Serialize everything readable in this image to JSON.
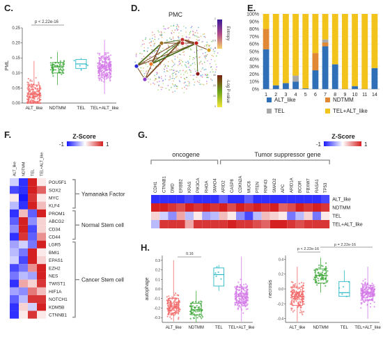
{
  "colors": {
    "alt": "#f26a6a",
    "ndtmm": "#3aa535",
    "tel": "#27b8c4",
    "telalt": "#d47be8",
    "bar_alt": "#2e6fb7",
    "bar_ndtmm": "#e08836",
    "bar_tel": "#a8a8a8",
    "bar_telalt": "#f2c31a",
    "heat_low": "#1a1aff",
    "heat_high": "#d42020"
  },
  "panels": {
    "c": {
      "label": "C.",
      "ylabel": "PML",
      "pvalue": "p < 2.22e-16",
      "categories": [
        "ALT_like",
        "NDTMM",
        "TEL",
        "TEL+ALT_like"
      ],
      "yticks": [
        "0.00",
        "0.05",
        "0.10",
        "0.15",
        "0.20",
        "0.25"
      ],
      "ylim": [
        0,
        0.25
      ]
    },
    "d": {
      "label": "D.",
      "title": "PMC",
      "entropy_label": "Entropy",
      "entropy_ticks": [
        "0",
        "0.5",
        "1",
        "1.5",
        "2"
      ],
      "pval_label": "-Log  P-value",
      "pval_ticks": [
        "0",
        "10",
        "20",
        "30"
      ]
    },
    "e": {
      "label": "E.",
      "yticks": [
        "0%",
        "10%",
        "20%",
        "30%",
        "40%",
        "50%",
        "60%",
        "70%",
        "80%",
        "90%",
        "100%"
      ],
      "legend": [
        "ALT_like",
        "NDTMM",
        "TEL",
        "TEL+ALT_like"
      ]
    },
    "f": {
      "label": "F.",
      "colorbar_title": "Z-Score",
      "cb_min": "-1",
      "cb_max": "1",
      "cols": [
        "ALT_like",
        "NDTMM",
        "TEL",
        "TEL+ALT_like"
      ],
      "genes": [
        "POU5F1",
        "SOX2",
        "MYC",
        "KLF4",
        "PROM1",
        "ABCG2",
        "CD34",
        "CD44",
        "LGR5",
        "BMI1",
        "EPAS1",
        "EZH2",
        "NES",
        "TWIST1",
        "HIF1A",
        "NOTCH1",
        "KDM5B",
        "CTNNB1"
      ],
      "groups": [
        "Yamanaka Factor",
        "Normal Stem cell",
        "Cancer Stem cell"
      ]
    },
    "g": {
      "label": "G.",
      "colorbar_title": "Z-Score",
      "cb_min": "-1",
      "cb_max": "1",
      "oncogene": "oncogene",
      "tsg": "Tumor suppressor gene",
      "genes": [
        "CDH1",
        "CTNNB1",
        "DMD",
        "ERBB2",
        "KRAS",
        "PIK3CA",
        "RHOA",
        "SMAD4",
        "ARID2",
        "CASP8",
        "CDKN2A",
        "MUC6",
        "PTEN",
        "RNF43",
        "SMAD2",
        "APC",
        "ARID1A",
        "BCOR",
        "FBXW7",
        "RASA1",
        "TP53"
      ],
      "rows": [
        "ALT_like",
        "NDTMM",
        "TEL",
        "TEL+ALT_like"
      ]
    },
    "h": {
      "label": "H.",
      "left_ylabel": "autophage",
      "right_ylabel": "necrosis",
      "left_p": "0.16",
      "right_p1": "p < 2.22e-16",
      "right_p2": "p = 2.22e-16",
      "categories": [
        "ALT_like",
        "NDTMM",
        "TEL",
        "TEL+ALT_like"
      ],
      "left_yticks": [
        "0.3",
        "0.2",
        "0.1",
        "0.0",
        "-0.1",
        "-0.2",
        "-0.3"
      ],
      "right_yticks": [
        "0.4",
        "0.2",
        "0.0",
        "-0.2",
        "-0.4"
      ]
    }
  },
  "chart_data": [
    {
      "type": "box",
      "panel": "C",
      "title": "",
      "ylabel": "PML",
      "categories": [
        "ALT_like",
        "NDTMM",
        "TEL",
        "TEL+ALT_like"
      ],
      "ylim": [
        0,
        0.25
      ],
      "boxes": [
        {
          "q1": 0.005,
          "median": 0.03,
          "q3": 0.06,
          "wmin": 0,
          "wmax": 0.14
        },
        {
          "q1": 0.1,
          "median": 0.12,
          "q3": 0.135,
          "wmin": 0.06,
          "wmax": 0.17
        },
        {
          "q1": 0.115,
          "median": 0.13,
          "q3": 0.145,
          "wmin": 0.11,
          "wmax": 0.15
        },
        {
          "q1": 0.09,
          "median": 0.12,
          "q3": 0.15,
          "wmin": 0.03,
          "wmax": 0.21
        }
      ]
    },
    {
      "type": "bar",
      "panel": "E",
      "stacked": true,
      "categories": [
        "1",
        "2",
        "3",
        "4",
        "5",
        "6",
        "7",
        "8",
        "9",
        "10",
        "11",
        "14"
      ],
      "series": [
        {
          "name": "ALT_like",
          "values": [
            53,
            5,
            8,
            10,
            1,
            25,
            57,
            33,
            0,
            4,
            0,
            28
          ]
        },
        {
          "name": "NDTMM",
          "values": [
            27,
            0,
            0,
            0,
            0,
            23,
            5,
            0,
            0,
            0,
            0,
            0
          ]
        },
        {
          "name": "TEL",
          "values": [
            0,
            0,
            0,
            8,
            0,
            0,
            4,
            0,
            0,
            0,
            0,
            0
          ]
        },
        {
          "name": "TEL+ALT_like",
          "values": [
            20,
            95,
            92,
            82,
            99,
            52,
            34,
            67,
            100,
            96,
            100,
            72
          ]
        }
      ],
      "ylim": [
        0,
        100
      ]
    },
    {
      "type": "heatmap",
      "panel": "F",
      "rows": [
        "POU5F1",
        "SOX2",
        "MYC",
        "KLF4",
        "PROM1",
        "ABCG2",
        "CD34",
        "CD44",
        "LGR5",
        "BMI1",
        "EPAS1",
        "EZH2",
        "NES",
        "TWIST1",
        "HIF1A",
        "NOTCH1",
        "KDM5B",
        "CTNNB1"
      ],
      "cols": [
        "ALT_like",
        "NDTMM",
        "TEL",
        "TEL+ALT_like"
      ],
      "values": [
        [
          -0.2,
          -0.9,
          1,
          0.1
        ],
        [
          -0.8,
          -0.9,
          1,
          0.7
        ],
        [
          0.1,
          -1,
          0.9,
          0.1
        ],
        [
          -0.3,
          -0.9,
          1,
          0.3
        ],
        [
          -0.9,
          0.3,
          -0.7,
          1
        ],
        [
          -0.7,
          1,
          -0.5,
          0.2
        ],
        [
          -0.5,
          1,
          -0.8,
          0.2
        ],
        [
          -0.9,
          0.9,
          -0.7,
          0.5
        ],
        [
          -0.4,
          -0.2,
          -0.6,
          1
        ],
        [
          -0.3,
          -0.6,
          1,
          0.1
        ],
        [
          -0.2,
          -0.8,
          1,
          0.2
        ],
        [
          -0.8,
          -0.6,
          0.5,
          1
        ],
        [
          -0.6,
          -0.3,
          -0.4,
          1
        ],
        [
          -0.9,
          0.4,
          0.2,
          0.9
        ],
        [
          -0.4,
          -0.5,
          0.6,
          0.3
        ],
        [
          -0.7,
          -0.3,
          0.9,
          0.9
        ],
        [
          -0.9,
          0.2,
          -0.2,
          1
        ],
        [
          -0.9,
          0.1,
          0.9,
          0.1
        ]
      ]
    },
    {
      "type": "heatmap",
      "panel": "G",
      "rows": [
        "ALT_like",
        "NDTMM",
        "TEL",
        "TEL+ALT_like"
      ],
      "cols": [
        "CDH1",
        "CTNNB1",
        "DMD",
        "ERBB2",
        "KRAS",
        "PIK3CA",
        "RHOA",
        "SMAD4",
        "ARID2",
        "CASP8",
        "CDKN2A",
        "MUC6",
        "PTEN",
        "RNF43",
        "SMAD2",
        "APC",
        "ARID1A",
        "BCOR",
        "FBXW7",
        "RASA1",
        "TP53"
      ],
      "values": [
        [
          -0.9,
          -0.9,
          -0.9,
          -0.9,
          -0.8,
          -0.9,
          -0.9,
          -0.9,
          -0.7,
          -0.9,
          -0.9,
          -0.7,
          -0.9,
          -0.9,
          -0.9,
          -0.9,
          -0.9,
          -0.9,
          -0.9,
          -0.9,
          -0.8
        ],
        [
          1,
          1,
          0.9,
          0.8,
          1,
          0.9,
          1,
          0.9,
          1,
          0.8,
          1,
          0.9,
          1,
          0.9,
          1,
          0.7,
          0.8,
          1,
          0.9,
          1,
          0.9
        ],
        [
          0.2,
          -0.2,
          -0.5,
          0.4,
          -0.3,
          0.1,
          -0.4,
          -0.3,
          0.3,
          0.1,
          -0.5,
          -0.8,
          -0.3,
          0.3,
          0.2,
          0.1,
          -0.6,
          -0.3,
          0.2,
          -0.6,
          0.1
        ],
        [
          -0.3,
          0.9,
          0.9,
          0.9,
          0.4,
          0.9,
          0.9,
          0.9,
          0.9,
          1,
          0.9,
          0.9,
          0.8,
          0.7,
          1,
          1,
          0.9,
          0.8,
          0.9,
          0.9,
          0.9
        ]
      ]
    },
    {
      "type": "box",
      "panel": "H-left",
      "ylabel": "autophage",
      "categories": [
        "ALT_like",
        "NDTMM",
        "TEL",
        "TEL+ALT_like"
      ],
      "ylim": [
        -0.35,
        0.35
      ],
      "boxes": [
        {
          "q1": -0.25,
          "median": -0.18,
          "q3": -0.1,
          "wmin": -0.34,
          "wmax": 0.3
        },
        {
          "q1": -0.27,
          "median": -0.22,
          "q3": -0.15,
          "wmin": -0.35,
          "wmax": -0.02
        },
        {
          "q1": 0.03,
          "median": 0.15,
          "q3": 0.22,
          "wmin": -0.02,
          "wmax": 0.25
        },
        {
          "q1": -0.15,
          "median": -0.08,
          "q3": 0.02,
          "wmin": -0.34,
          "wmax": 0.34
        }
      ]
    },
    {
      "type": "box",
      "panel": "H-right",
      "ylabel": "necrosis",
      "categories": [
        "ALT_like",
        "NDTMM",
        "TEL",
        "TEL+ALT_like"
      ],
      "ylim": [
        -0.45,
        0.45
      ],
      "boxes": [
        {
          "q1": -0.22,
          "median": -0.1,
          "q3": 0.02,
          "wmin": -0.44,
          "wmax": 0.3
        },
        {
          "q1": 0.08,
          "median": 0.18,
          "q3": 0.27,
          "wmin": -0.05,
          "wmax": 0.42
        },
        {
          "q1": -0.1,
          "median": -0.05,
          "q3": 0.1,
          "wmin": -0.1,
          "wmax": 0.25
        },
        {
          "q1": -0.15,
          "median": -0.05,
          "q3": 0.05,
          "wmin": -0.4,
          "wmax": 0.3
        }
      ]
    }
  ]
}
